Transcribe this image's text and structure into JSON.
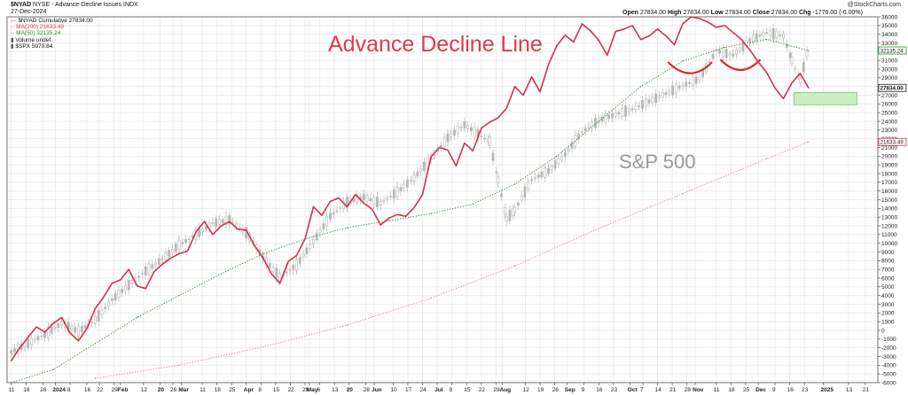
{
  "header": {
    "symbol": "$NYAD",
    "description": "NYSE - Advance-Decline Issues",
    "exchange": "INDX",
    "date": "27-Dec-2024",
    "watermark": "@StockCharts.com",
    "quote": {
      "open_label": "Open",
      "open": "27834.00",
      "high_label": "High",
      "high": "27834.00",
      "low_label": "Low",
      "low": "27834.00",
      "close_label": "Close",
      "close": "27834.00",
      "chg_label": "Chg",
      "chg": "-1776.00 (-6.00%)"
    }
  },
  "legend": [
    {
      "text": "$NYAD Cumulative 27834.00",
      "color": "#d6304a",
      "symbol": "—"
    },
    {
      "text": "MA(200) 21633.49",
      "color": "#d6304a",
      "symbol": "··"
    },
    {
      "text": "MA(50) 32135.24",
      "color": "#2a8a2a",
      "symbol": "··"
    },
    {
      "text": "Volume undef",
      "color": "#555555",
      "symbol": "▮"
    },
    {
      "text": "$SPX 5970.84",
      "color": "#555555",
      "symbol": "▮"
    }
  ],
  "chart_data": {
    "type": "line",
    "title": "Advance Decline Line",
    "annotation": "S&P 500",
    "ylim": [
      -6000,
      36000
    ],
    "y_ticks": [
      -6000,
      -5000,
      -4000,
      -3000,
      -2000,
      -1000,
      0,
      1000,
      2000,
      3000,
      4000,
      5000,
      6000,
      7000,
      8000,
      9000,
      10000,
      11000,
      12000,
      13000,
      14000,
      15000,
      16000,
      17000,
      18000,
      19000,
      20000,
      21000,
      22000,
      23000,
      24000,
      25000,
      26000,
      27000,
      28000,
      29000,
      30000,
      31000,
      32000,
      33000,
      34000,
      35000,
      36000
    ],
    "price_tags": [
      {
        "label": "27834.00",
        "value": 27834,
        "style": "filled"
      },
      {
        "label": "21633.49",
        "value": 21633,
        "style": "outline-red"
      },
      {
        "label": "32135.24",
        "value": 32135,
        "style": "outline-green"
      }
    ],
    "x_ticks": [
      {
        "label": "11",
        "day": 0
      },
      {
        "label": "18",
        "day": 7
      },
      {
        "label": "26",
        "day": 15
      },
      {
        "label": "2024",
        "day": 21
      },
      {
        "label": "8",
        "day": 28
      },
      {
        "label": "16",
        "day": 36
      },
      {
        "label": "22",
        "day": 42
      },
      {
        "label": "29",
        "day": 49
      },
      {
        "label": "Feb",
        "day": 52
      },
      {
        "label": "12",
        "day": 63
      },
      {
        "label": "20",
        "day": 71
      },
      {
        "label": "26",
        "day": 77
      },
      {
        "label": "Mar",
        "day": 81
      },
      {
        "label": "11",
        "day": 91
      },
      {
        "label": "18",
        "day": 98
      },
      {
        "label": "25",
        "day": 105
      },
      {
        "label": "Apr",
        "day": 112
      },
      {
        "label": "8",
        "day": 119
      },
      {
        "label": "15",
        "day": 126
      },
      {
        "label": "22",
        "day": 133
      },
      {
        "label": "29",
        "day": 140
      },
      {
        "label": "May",
        "day": 142
      },
      {
        "label": "6",
        "day": 147
      },
      {
        "label": "13",
        "day": 154
      },
      {
        "label": "20",
        "day": 161
      },
      {
        "label": "28",
        "day": 169
      },
      {
        "label": "Jun",
        "day": 173
      },
      {
        "label": "10",
        "day": 182
      },
      {
        "label": "17",
        "day": 189
      },
      {
        "label": "24",
        "day": 196
      },
      {
        "label": "Jul",
        "day": 203
      },
      {
        "label": "8",
        "day": 210
      },
      {
        "label": "15",
        "day": 217
      },
      {
        "label": "22",
        "day": 224
      },
      {
        "label": "29",
        "day": 231
      },
      {
        "label": "Aug",
        "day": 234
      },
      {
        "label": "12",
        "day": 245
      },
      {
        "label": "19",
        "day": 252
      },
      {
        "label": "26",
        "day": 259
      },
      {
        "label": "Sep",
        "day": 265
      },
      {
        "label": "9",
        "day": 273
      },
      {
        "label": "16",
        "day": 280
      },
      {
        "label": "23",
        "day": 287
      },
      {
        "label": "Oct",
        "day": 295
      },
      {
        "label": "7",
        "day": 301
      },
      {
        "label": "14",
        "day": 308
      },
      {
        "label": "21",
        "day": 315
      },
      {
        "label": "28",
        "day": 322
      },
      {
        "label": "Nov",
        "day": 326
      },
      {
        "label": "11",
        "day": 336
      },
      {
        "label": "18",
        "day": 343
      },
      {
        "label": "25",
        "day": 350
      },
      {
        "label": "Dec",
        "day": 356
      },
      {
        "label": "9",
        "day": 364
      },
      {
        "label": "16",
        "day": 371
      },
      {
        "label": "23",
        "day": 378
      },
      {
        "label": "2025",
        "day": 387
      },
      {
        "label": "13",
        "day": 399
      },
      {
        "label": "21",
        "day": 407
      }
    ],
    "xlim_days": [
      -2,
      413
    ],
    "series": [
      {
        "name": "$NYAD Cumulative",
        "style": "solid",
        "color": "#d6304a",
        "x": [
          0,
          4,
          8,
          12,
          16,
          20,
          24,
          28,
          32,
          36,
          40,
          44,
          48,
          52,
          56,
          60,
          64,
          68,
          72,
          76,
          80,
          84,
          88,
          92,
          96,
          100,
          104,
          108,
          112,
          116,
          120,
          124,
          128,
          132,
          136,
          140,
          144,
          148,
          152,
          156,
          160,
          164,
          168,
          172,
          176,
          180,
          184,
          188,
          192,
          196,
          200,
          204,
          208,
          212,
          216,
          220,
          224,
          228,
          232,
          236,
          240,
          244,
          248,
          252,
          256,
          260,
          264,
          268,
          272,
          276,
          280,
          284,
          288,
          292,
          296,
          300,
          304,
          308,
          312,
          316,
          320,
          324,
          328,
          332,
          336,
          340,
          344,
          348,
          352,
          356,
          360,
          364,
          368,
          372,
          376,
          380
        ],
        "values": [
          -3500,
          -2000,
          -800,
          400,
          -200,
          800,
          1500,
          -300,
          -1200,
          200,
          2500,
          3800,
          5400,
          5800,
          7000,
          5100,
          4800,
          6700,
          7600,
          8300,
          8800,
          9100,
          11300,
          12500,
          11000,
          12000,
          12500,
          11600,
          11500,
          9700,
          8300,
          6500,
          5400,
          7900,
          8600,
          10500,
          14200,
          13200,
          14800,
          15200,
          14200,
          15600,
          14600,
          13900,
          12100,
          12900,
          13300,
          13100,
          14100,
          15600,
          19900,
          21000,
          20700,
          18900,
          21500,
          20600,
          23200,
          23900,
          24400,
          25500,
          28000,
          27000,
          29100,
          27400,
          30500,
          32700,
          33900,
          33100,
          35200,
          34400,
          33300,
          31600,
          34300,
          34600,
          35000,
          33400,
          33800,
          34600,
          33800,
          32800,
          35200,
          36000,
          35800,
          35400,
          34800,
          35000,
          34200,
          33400,
          32200,
          30800,
          29600,
          27800,
          26600,
          28400,
          29500,
          27834
        ]
      },
      {
        "name": "MA(50)",
        "style": "dotted",
        "color": "#2a8a2a",
        "x": [
          0,
          20,
          40,
          60,
          80,
          100,
          120,
          140,
          160,
          180,
          200,
          220,
          240,
          260,
          280,
          300,
          320,
          340,
          360,
          380
        ],
        "values": [
          -6000,
          -4500,
          -1500,
          1500,
          4000,
          6500,
          8800,
          10500,
          11800,
          12600,
          13400,
          14500,
          16800,
          20000,
          24000,
          28000,
          30900,
          32500,
          33400,
          32135
        ]
      },
      {
        "name": "MA(200)",
        "style": "dotted",
        "color": "#e07a8a",
        "x": [
          40,
          80,
          120,
          160,
          200,
          240,
          280,
          320,
          360,
          380
        ],
        "values": [
          -5500,
          -4000,
          -1900,
          600,
          3700,
          7400,
          11700,
          15700,
          19700,
          21633
        ]
      },
      {
        "name": "$SPX",
        "style": "candles",
        "color": "#b8b8b8",
        "x": [
          0,
          8,
          16,
          24,
          32,
          40,
          48,
          56,
          64,
          72,
          80,
          88,
          96,
          104,
          112,
          120,
          128,
          136,
          144,
          152,
          160,
          168,
          176,
          184,
          192,
          200,
          208,
          216,
          224,
          228,
          232,
          236,
          240,
          248,
          256,
          264,
          272,
          280,
          288,
          296,
          304,
          312,
          320,
          328,
          336,
          344,
          352,
          360,
          368,
          372,
          376,
          380
        ],
        "values": [
          -2500,
          -1500,
          -500,
          800,
          -100,
          1200,
          3500,
          5200,
          6800,
          8200,
          9800,
          11000,
          12300,
          12700,
          11200,
          8400,
          6100,
          7500,
          10200,
          13100,
          14700,
          15300,
          14600,
          15900,
          17500,
          19700,
          22100,
          23600,
          22300,
          21700,
          17300,
          12800,
          13800,
          17300,
          18300,
          20200,
          22800,
          24100,
          24800,
          25400,
          26300,
          27200,
          28100,
          28900,
          32100,
          31600,
          33300,
          34200,
          33800,
          31000,
          28700,
          32500
        ]
      }
    ],
    "drawing_annotations": [
      {
        "type": "arc",
        "label": ""
      },
      {
        "type": "arc",
        "label": ""
      },
      {
        "type": "support-box",
        "label": ""
      }
    ]
  }
}
